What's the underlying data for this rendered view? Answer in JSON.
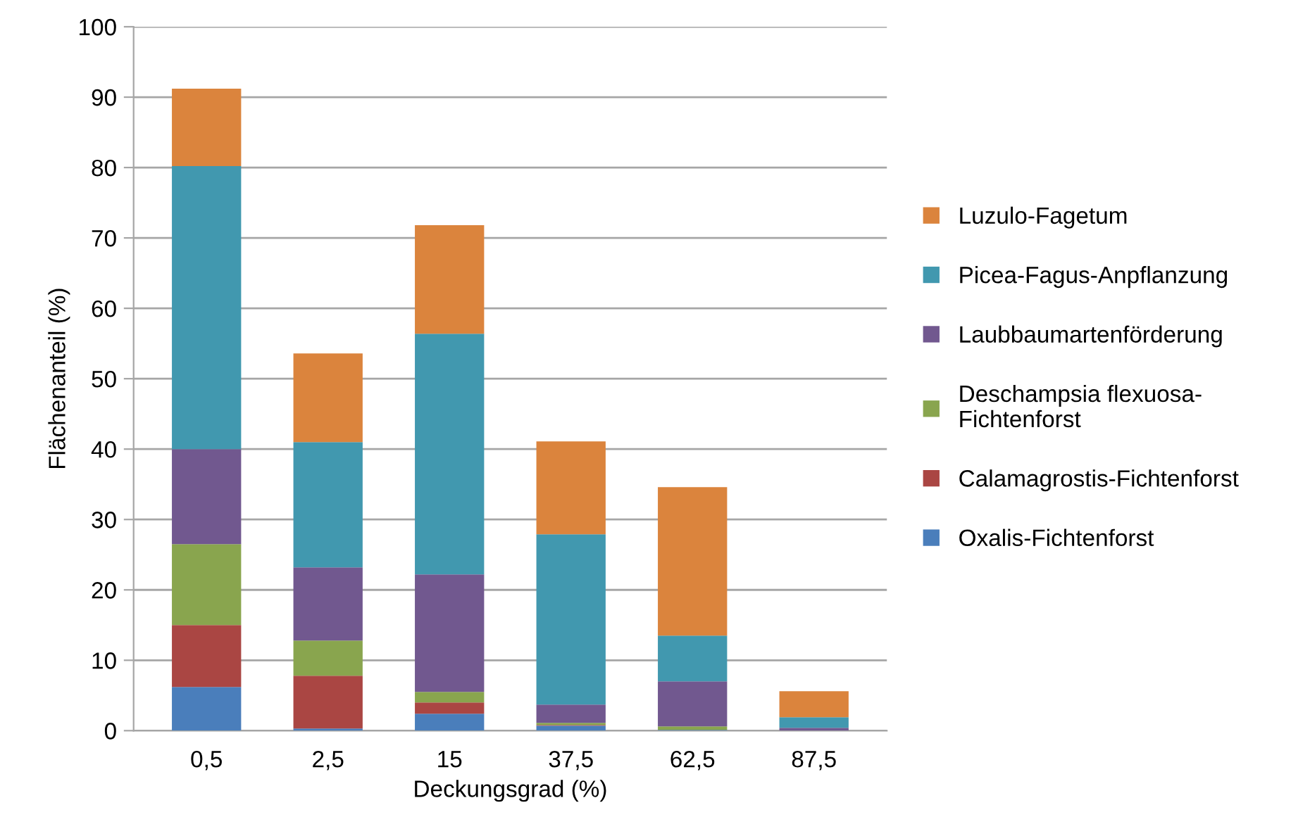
{
  "chart_data": {
    "type": "bar",
    "stacked": true,
    "xlabel": "Deckungsgrad (%)",
    "ylabel": "Flächenanteil (%)",
    "categories": [
      "0,5",
      "2,5",
      "15",
      "37,5",
      "62,5",
      "87,5"
    ],
    "series": [
      {
        "name": "Oxalis-Fichtenforst",
        "color": "#4a7ebb",
        "values": [
          6.2,
          0.3,
          2.4,
          0.7,
          0.1,
          0
        ]
      },
      {
        "name": "Calamagrostis-Fichtenforst",
        "color": "#aa4643",
        "values": [
          8.8,
          7.5,
          1.6,
          0.1,
          0,
          0
        ]
      },
      {
        "name": "Deschampsia flexuosa-\nFichtenforst",
        "color": "#89a54e",
        "values": [
          11.5,
          5.0,
          1.5,
          0.3,
          0.5,
          0
        ]
      },
      {
        "name": "Laubbaumartenförderung",
        "color": "#71588f",
        "values": [
          13.5,
          10.4,
          16.7,
          2.6,
          6.4,
          0.4
        ]
      },
      {
        "name": "Picea-Fagus-Anpflanzung",
        "color": "#4198af",
        "values": [
          40.2,
          17.8,
          34.2,
          24.2,
          6.5,
          1.5
        ]
      },
      {
        "name": "Luzulo-Fagetum",
        "color": "#db843d",
        "values": [
          11.0,
          12.6,
          15.4,
          13.2,
          21.1,
          3.7
        ]
      }
    ],
    "ylim": [
      0,
      100
    ],
    "yticks": [
      0,
      10,
      20,
      30,
      40,
      50,
      60,
      70,
      80,
      90,
      100
    ],
    "grid": "y",
    "legend": "right"
  }
}
